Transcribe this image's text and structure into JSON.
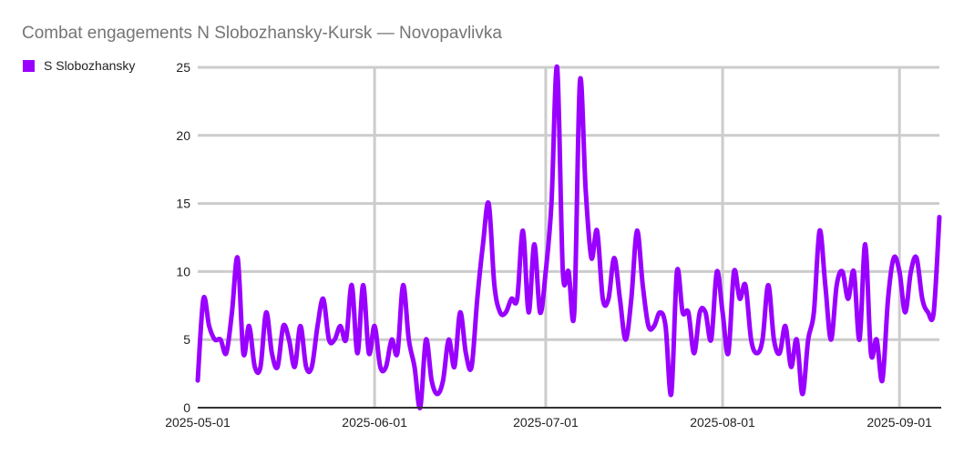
{
  "chart_data": {
    "type": "line",
    "title": "Combat engagements N Slobozhansky-Kursk — Novopavlivka",
    "xlabel": "",
    "ylabel": "",
    "x_range": [
      "2025-05-01",
      "2025-09-08"
    ],
    "ylim": [
      0,
      25
    ],
    "y_ticks": [
      0,
      5,
      10,
      15,
      20,
      25
    ],
    "x_ticks": [
      "2025-05-01",
      "2025-06-01",
      "2025-07-01",
      "2025-08-01",
      "2025-09-01"
    ],
    "grid": true,
    "legend_position": "top-left",
    "series": [
      {
        "name": "S Slobozhansky",
        "color": "#9900ff",
        "points": [
          [
            "2025-05-01",
            2
          ],
          [
            "2025-05-02",
            8
          ],
          [
            "2025-05-03",
            6
          ],
          [
            "2025-05-04",
            5
          ],
          [
            "2025-05-05",
            5
          ],
          [
            "2025-05-06",
            4
          ],
          [
            "2025-05-07",
            7
          ],
          [
            "2025-05-08",
            11
          ],
          [
            "2025-05-09",
            4
          ],
          [
            "2025-05-10",
            6
          ],
          [
            "2025-05-11",
            3
          ],
          [
            "2025-05-12",
            3
          ],
          [
            "2025-05-13",
            7
          ],
          [
            "2025-05-14",
            4
          ],
          [
            "2025-05-15",
            3
          ],
          [
            "2025-05-16",
            6
          ],
          [
            "2025-05-17",
            5
          ],
          [
            "2025-05-18",
            3
          ],
          [
            "2025-05-19",
            6
          ],
          [
            "2025-05-20",
            3
          ],
          [
            "2025-05-21",
            3
          ],
          [
            "2025-05-22",
            6
          ],
          [
            "2025-05-23",
            8
          ],
          [
            "2025-05-24",
            5
          ],
          [
            "2025-05-25",
            5
          ],
          [
            "2025-05-26",
            6
          ],
          [
            "2025-05-27",
            5
          ],
          [
            "2025-05-28",
            9
          ],
          [
            "2025-05-29",
            4
          ],
          [
            "2025-05-30",
            9
          ],
          [
            "2025-05-31",
            4
          ],
          [
            "2025-06-01",
            6
          ],
          [
            "2025-06-02",
            3
          ],
          [
            "2025-06-03",
            3
          ],
          [
            "2025-06-04",
            5
          ],
          [
            "2025-06-05",
            4
          ],
          [
            "2025-06-06",
            9
          ],
          [
            "2025-06-07",
            5
          ],
          [
            "2025-06-08",
            3
          ],
          [
            "2025-06-09",
            0
          ],
          [
            "2025-06-10",
            5
          ],
          [
            "2025-06-11",
            2
          ],
          [
            "2025-06-12",
            1
          ],
          [
            "2025-06-13",
            2
          ],
          [
            "2025-06-14",
            5
          ],
          [
            "2025-06-15",
            3
          ],
          [
            "2025-06-16",
            7
          ],
          [
            "2025-06-17",
            4
          ],
          [
            "2025-06-18",
            3
          ],
          [
            "2025-06-19",
            8
          ],
          [
            "2025-06-20",
            12
          ],
          [
            "2025-06-21",
            15
          ],
          [
            "2025-06-22",
            9
          ],
          [
            "2025-06-23",
            7
          ],
          [
            "2025-06-24",
            7
          ],
          [
            "2025-06-25",
            8
          ],
          [
            "2025-06-26",
            8
          ],
          [
            "2025-06-27",
            13
          ],
          [
            "2025-06-28",
            7
          ],
          [
            "2025-06-29",
            12
          ],
          [
            "2025-06-30",
            7
          ],
          [
            "2025-07-01",
            10
          ],
          [
            "2025-07-02",
            15
          ],
          [
            "2025-07-03",
            25
          ],
          [
            "2025-07-04",
            10
          ],
          [
            "2025-07-05",
            10
          ],
          [
            "2025-07-06",
            7
          ],
          [
            "2025-07-07",
            24
          ],
          [
            "2025-07-08",
            16
          ],
          [
            "2025-07-09",
            11
          ],
          [
            "2025-07-10",
            13
          ],
          [
            "2025-07-11",
            8
          ],
          [
            "2025-07-12",
            8
          ],
          [
            "2025-07-13",
            11
          ],
          [
            "2025-07-14",
            8
          ],
          [
            "2025-07-15",
            5
          ],
          [
            "2025-07-16",
            8
          ],
          [
            "2025-07-17",
            13
          ],
          [
            "2025-07-18",
            9
          ],
          [
            "2025-07-19",
            6
          ],
          [
            "2025-07-20",
            6
          ],
          [
            "2025-07-21",
            7
          ],
          [
            "2025-07-22",
            6
          ],
          [
            "2025-07-23",
            1
          ],
          [
            "2025-07-24",
            10
          ],
          [
            "2025-07-25",
            7
          ],
          [
            "2025-07-26",
            7
          ],
          [
            "2025-07-27",
            4
          ],
          [
            "2025-07-28",
            7
          ],
          [
            "2025-07-29",
            7
          ],
          [
            "2025-07-30",
            5
          ],
          [
            "2025-07-31",
            10
          ],
          [
            "2025-08-01",
            7
          ],
          [
            "2025-08-02",
            4
          ],
          [
            "2025-08-03",
            10
          ],
          [
            "2025-08-04",
            8
          ],
          [
            "2025-08-05",
            9
          ],
          [
            "2025-08-06",
            5
          ],
          [
            "2025-08-07",
            4
          ],
          [
            "2025-08-08",
            5
          ],
          [
            "2025-08-09",
            9
          ],
          [
            "2025-08-10",
            5
          ],
          [
            "2025-08-11",
            4
          ],
          [
            "2025-08-12",
            6
          ],
          [
            "2025-08-13",
            3
          ],
          [
            "2025-08-14",
            5
          ],
          [
            "2025-08-15",
            1
          ],
          [
            "2025-08-16",
            5
          ],
          [
            "2025-08-17",
            7
          ],
          [
            "2025-08-18",
            13
          ],
          [
            "2025-08-19",
            9
          ],
          [
            "2025-08-20",
            5
          ],
          [
            "2025-08-21",
            9
          ],
          [
            "2025-08-22",
            10
          ],
          [
            "2025-08-23",
            8
          ],
          [
            "2025-08-24",
            10
          ],
          [
            "2025-08-25",
            5
          ],
          [
            "2025-08-26",
            12
          ],
          [
            "2025-08-27",
            4
          ],
          [
            "2025-08-28",
            5
          ],
          [
            "2025-08-29",
            2
          ],
          [
            "2025-08-30",
            8
          ],
          [
            "2025-08-31",
            11
          ],
          [
            "2025-09-01",
            10
          ],
          [
            "2025-09-02",
            7
          ],
          [
            "2025-09-03",
            10
          ],
          [
            "2025-09-04",
            11
          ],
          [
            "2025-09-05",
            8
          ],
          [
            "2025-09-06",
            7
          ],
          [
            "2025-09-07",
            7
          ],
          [
            "2025-09-08",
            14
          ]
        ]
      }
    ]
  }
}
